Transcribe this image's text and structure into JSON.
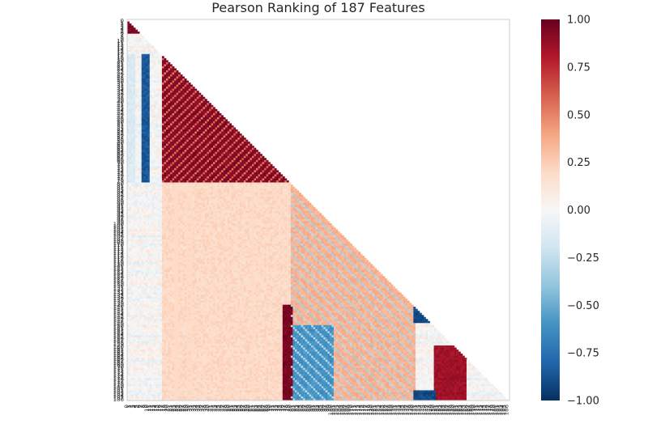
{
  "chart_data": {
    "type": "heatmap",
    "title": "Pearson Ranking of 187 Features",
    "n_features": 187,
    "mask": "upper-triangle",
    "colormap": [
      "#67001f",
      "#b2182b",
      "#d6604d",
      "#f4a582",
      "#fddbc7",
      "#f7f7f7",
      "#d1e5f0",
      "#92c5de",
      "#4393c3",
      "#2166ac",
      "#053061"
    ],
    "colorbar": {
      "range": [
        -1.0,
        1.0
      ],
      "ticks": [
        "1.00",
        "0.75",
        "0.50",
        "0.25",
        "0.00",
        "−0.25",
        "−0.50",
        "−0.75",
        "−1.00"
      ],
      "tick_values": [
        1.0,
        0.75,
        0.5,
        0.25,
        0.0,
        -0.25,
        -0.5,
        -0.75,
        -1.0
      ]
    },
    "y_tick_labels_top": [
      "0",
      "5"
    ],
    "y_tick_labels_bottom": [
      "180",
      "186"
    ],
    "x_tick_labels_left": [
      "0",
      "5"
    ],
    "x_tick_labels_right": [
      "180",
      "186"
    ],
    "grid": false,
    "legend": "none",
    "blocks": [
      {
        "rows": [
          0,
          6
        ],
        "cols": [
          0,
          6
        ],
        "corr": 0.95
      },
      {
        "rows": [
          17,
          79
        ],
        "cols": [
          0,
          3
        ],
        "corr": -0.15
      },
      {
        "rows": [
          17,
          79
        ],
        "cols": [
          7,
          10
        ],
        "corr": -0.85
      },
      {
        "rows": [
          18,
          79
        ],
        "cols": [
          17,
          79
        ],
        "corr": 0.9
      },
      {
        "rows": [
          80,
          186
        ],
        "cols": [
          17,
          79
        ],
        "corr": 0.2
      },
      {
        "rows": [
          80,
          186
        ],
        "cols": [
          80,
          140
        ],
        "corr": 0.35
      },
      {
        "rows": [
          140,
          148
        ],
        "cols": [
          140,
          150
        ],
        "corr": -0.9
      },
      {
        "rows": [
          150,
          186
        ],
        "cols": [
          80,
          100
        ],
        "corr": -0.6
      },
      {
        "rows": [
          160,
          186
        ],
        "cols": [
          150,
          165
        ],
        "corr": 0.85
      },
      {
        "rows": [
          182,
          186
        ],
        "cols": [
          140,
          150
        ],
        "corr": -0.9
      },
      {
        "rows": [
          140,
          186
        ],
        "cols": [
          76,
          80
        ],
        "corr": 0.95
      }
    ]
  }
}
